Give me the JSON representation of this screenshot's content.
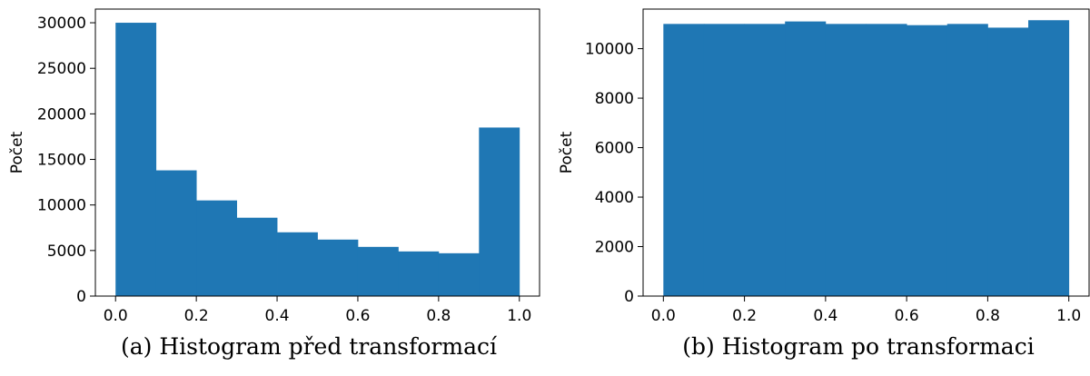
{
  "chart_data": [
    {
      "type": "bar",
      "caption": "(a) Histogram před transformací",
      "ylabel": "Počet",
      "xlabel": "",
      "xlim": [
        -0.05,
        1.05
      ],
      "ylim": [
        0,
        31500
      ],
      "xticks": [
        "0.0",
        "0.2",
        "0.4",
        "0.6",
        "0.8",
        "1.0"
      ],
      "yticks": [
        "0",
        "5000",
        "10000",
        "15000",
        "20000",
        "25000",
        "30000"
      ],
      "bin_edges": [
        0.0,
        0.1,
        0.2,
        0.3,
        0.4,
        0.5,
        0.6,
        0.7,
        0.8,
        0.9,
        1.0
      ],
      "values": [
        30000,
        13800,
        10500,
        8600,
        7000,
        6200,
        5400,
        4900,
        4700,
        18500
      ],
      "color": "#1f77b4",
      "grid": false
    },
    {
      "type": "bar",
      "caption": "(b) Histogram po transformaci",
      "ylabel": "Počet",
      "xlabel": "",
      "xlim": [
        -0.05,
        1.05
      ],
      "ylim": [
        0,
        11600
      ],
      "xticks": [
        "0.0",
        "0.2",
        "0.4",
        "0.6",
        "0.8",
        "1.0"
      ],
      "yticks": [
        "0",
        "2000",
        "4000",
        "6000",
        "8000",
        "10000"
      ],
      "bin_edges": [
        0.0,
        0.1,
        0.2,
        0.3,
        0.4,
        0.5,
        0.6,
        0.7,
        0.8,
        0.9,
        1.0
      ],
      "values": [
        11000,
        11000,
        11000,
        11100,
        11000,
        11000,
        10950,
        11000,
        10850,
        11150
      ],
      "color": "#1f77b4",
      "grid": false
    }
  ]
}
